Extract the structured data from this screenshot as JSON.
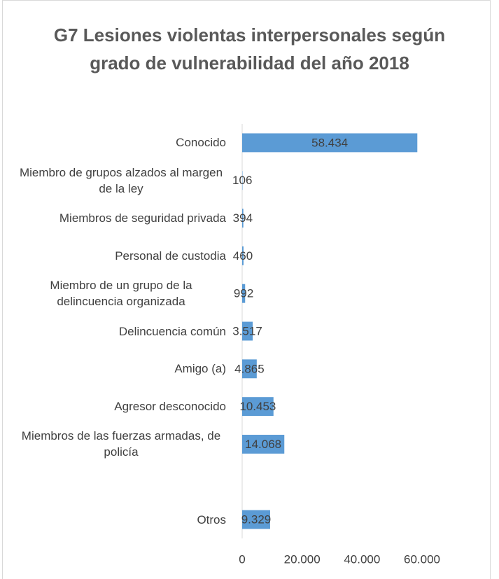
{
  "chart_data": {
    "type": "barh",
    "title": "G7 Lesiones violentas interpersonales según grado de vulnerabilidad del año 2018",
    "categories": [
      "Conocido",
      "Miembro de grupos alzados al margen de la ley",
      "Miembros de seguridad privada",
      "Personal de custodia",
      "Miembro de un grupo de la delincuencia organizada",
      "Delincuencia común",
      "Amigo (a)",
      "Agresor desconocido",
      "Miembros de las fuerzas armadas, de policía",
      null,
      "Otros"
    ],
    "values": [
      58434,
      106,
      394,
      460,
      992,
      3517,
      4865,
      10453,
      14068,
      null,
      9329
    ],
    "value_labels": [
      "58.434",
      "106",
      "394",
      "460",
      "992",
      "3.517",
      "4.865",
      "10.453",
      "14.068",
      null,
      "9.329"
    ],
    "color": "#5b9bd5",
    "xlim": [
      0,
      60000
    ],
    "xticks": [
      0,
      {
        "value": 20000,
        "label": "20.000"
      },
      {
        "value": 40000,
        "label": "40.000"
      },
      {
        "value": 60000,
        "label": "60.000"
      }
    ],
    "grid": false
  }
}
